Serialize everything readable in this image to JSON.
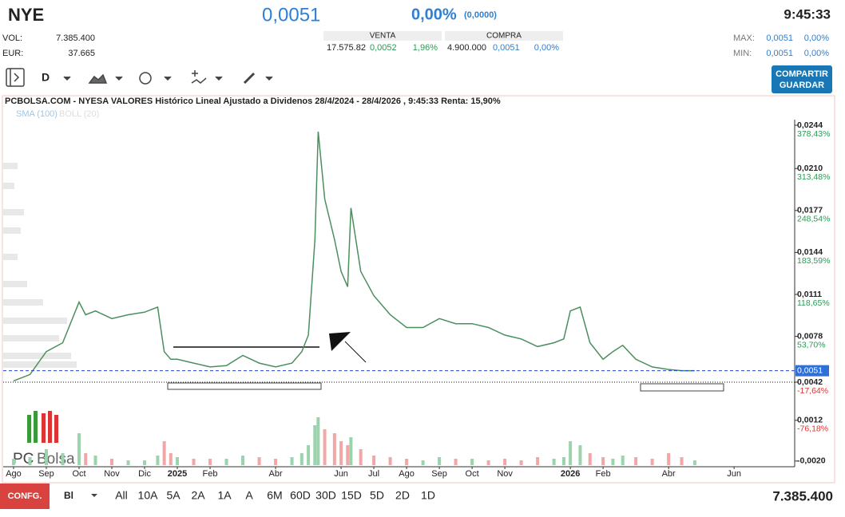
{
  "header": {
    "symbol": "NYE",
    "price": "0,0051",
    "change_pct": "0,00%",
    "change_abs": "(0,0000)",
    "time": "9:45:33"
  },
  "stats": {
    "vol_label": "VOL:",
    "vol": "7.385.400",
    "eur_label": "EUR:",
    "eur": "37.665",
    "venta": {
      "title": "VENTA",
      "qty": "17.575.82",
      "price": "0,0052",
      "pct": "1,96%"
    },
    "compra": {
      "title": "COMPRA",
      "qty": "4.900.000",
      "price": "0,0051",
      "pct": "0,00%"
    },
    "max": {
      "label": "MAX:",
      "price": "0,0051",
      "pct": "0,00%"
    },
    "min": {
      "label": "MIN:",
      "price": "0,0051",
      "pct": "0,00%"
    }
  },
  "toolbar": {
    "interval": "D",
    "share_button": [
      "COMPARTIR",
      "GUARDAR"
    ]
  },
  "chart_data": {
    "type": "line",
    "title": "PCBOLSA.COM - NYESA VALORES Histórico Lineal Ajustado a Dividenos 28/4/2024 - 28/4/2026 , 9:45:33 Renta: 15,90%",
    "indicators": [
      "SMA (100)",
      "BOLL (20)"
    ],
    "logo": [
      "PC",
      "Bolsa"
    ],
    "color": "#4a8f5e",
    "x": [
      0,
      0.5,
      1,
      1.5,
      2,
      2.2,
      2.5,
      3,
      3.5,
      4,
      4.4,
      4.6,
      4.8,
      5,
      5.5,
      6,
      6.5,
      7,
      7.5,
      8,
      8.5,
      8.8,
      9,
      9.2,
      9.3,
      9.5,
      9.8,
      10,
      10.2,
      10.3,
      10.6,
      11,
      11.5,
      12,
      12.5,
      13,
      13.5,
      14,
      14.5,
      15,
      15.5,
      16,
      16.5,
      16.8,
      17,
      17.3,
      17.6,
      18,
      18.3,
      18.6,
      19,
      19.5,
      20,
      20.4,
      20.8
    ],
    "values": [
      0.0043,
      0.0048,
      0.0066,
      0.0073,
      0.0105,
      0.0095,
      0.0098,
      0.0092,
      0.0095,
      0.0097,
      0.0101,
      0.0066,
      0.006,
      0.006,
      0.0057,
      0.0054,
      0.0055,
      0.0063,
      0.0057,
      0.0054,
      0.0057,
      0.0066,
      0.0079,
      0.0154,
      0.0239,
      0.0186,
      0.0154,
      0.0129,
      0.0117,
      0.0179,
      0.0129,
      0.011,
      0.0095,
      0.0085,
      0.0085,
      0.0092,
      0.0088,
      0.0088,
      0.0085,
      0.0079,
      0.0076,
      0.007,
      0.0073,
      0.0076,
      0.0098,
      0.0101,
      0.0073,
      0.006,
      0.0066,
      0.0071,
      0.006,
      0.0054,
      0.0052,
      0.0051,
      0.0051
    ],
    "volume": {
      "color": "#9bd3ad",
      "values": [
        8,
        10,
        20,
        15,
        40,
        15,
        12,
        8,
        6,
        6,
        12,
        30,
        15,
        10,
        8,
        8,
        8,
        12,
        10,
        8,
        10,
        15,
        25,
        50,
        60,
        45,
        40,
        30,
        25,
        35,
        20,
        12,
        10,
        8,
        6,
        10,
        8,
        8,
        6,
        8,
        6,
        10,
        8,
        10,
        30,
        25,
        15,
        10,
        8,
        12,
        10,
        8,
        15,
        10,
        6
      ],
      "ylim": [
        0,
        80
      ]
    },
    "xlim": [
      -0.3,
      23.85
    ],
    "xticks": [
      {
        "value": 0,
        "label": "Ago"
      },
      {
        "value": 1,
        "label": "Sep"
      },
      {
        "value": 2,
        "label": "Oct"
      },
      {
        "value": 3,
        "label": "Nov"
      },
      {
        "value": 4,
        "label": "Dic"
      },
      {
        "value": 5,
        "label": "2025"
      },
      {
        "value": 6,
        "label": "Feb"
      },
      {
        "value": 8,
        "label": "Abr"
      },
      {
        "value": 10,
        "label": "Jun"
      },
      {
        "value": 11,
        "label": "Jul"
      },
      {
        "value": 12,
        "label": "Ago"
      },
      {
        "value": 13,
        "label": "Sep"
      },
      {
        "value": 14,
        "label": "Oct"
      },
      {
        "value": 15,
        "label": "Nov"
      },
      {
        "value": 17,
        "label": "2026"
      },
      {
        "value": 18,
        "label": "Feb"
      },
      {
        "value": 20,
        "label": "Abr"
      },
      {
        "value": 22,
        "label": "Jun"
      }
    ],
    "ylim": [
      -0.00245,
      0.02578
    ],
    "yticks": [
      {
        "value": 0.0244,
        "label": "0,0244"
      },
      {
        "value": 0.021,
        "label": "0,0210"
      },
      {
        "value": 0.0177,
        "label": "0,0177"
      },
      {
        "value": 0.0144,
        "label": "0,0144"
      },
      {
        "value": 0.0111,
        "label": "0,0111"
      },
      {
        "value": 0.0078,
        "label": "0,0078"
      },
      {
        "value": 0.0042,
        "label": "0,0042"
      },
      {
        "value": 0.0012,
        "label": "0,0012"
      },
      {
        "value": -0.002,
        "label": "-0,0020"
      }
    ],
    "ytick_pcts": [
      "378,43%",
      "313,48%",
      "248,54%",
      "183,59%",
      "118,65%",
      "53,70%",
      "-17,64%",
      "-76,18%",
      null
    ],
    "last": {
      "value": 0.0051,
      "label": "0,0051"
    }
  },
  "footer": {
    "config": "CONFG.",
    "mode": "Bl",
    "ranges": [
      "All",
      "10A",
      "5A",
      "2A",
      "1A",
      "A",
      "6M",
      "60D",
      "30D",
      "15D",
      "5D",
      "2D",
      "1D"
    ],
    "volume": "7.385.400"
  }
}
